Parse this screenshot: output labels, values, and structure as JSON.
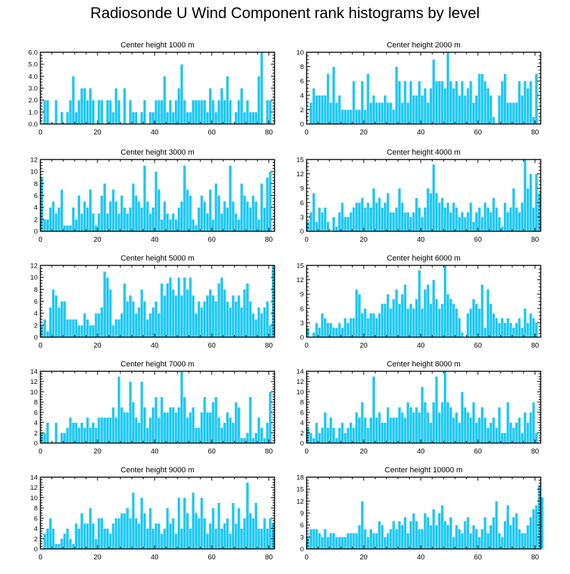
{
  "page_title": "Radiosonde U Wind Component rank histograms by level",
  "colors": {
    "bar": "#1EC8F5",
    "bar_edge": "#ffffff",
    "axis": "#000000"
  },
  "chart_data": [
    {
      "type": "bar",
      "title": "Center height 1000 m",
      "xlim": [
        0,
        82
      ],
      "ylim": [
        0,
        6
      ],
      "xticks": [
        0,
        20,
        40,
        60,
        80
      ],
      "yticks": [
        0,
        1,
        2,
        3,
        4,
        5,
        6
      ],
      "ytick_labels": [
        "0.0",
        "1.0",
        "2.0",
        "3.0",
        "4.0",
        "5.0",
        "6.0"
      ],
      "values": [
        0,
        2,
        2,
        0,
        0,
        2,
        0,
        1,
        0,
        1,
        2,
        4,
        1,
        2,
        3,
        3,
        2,
        3,
        2,
        0,
        2,
        2,
        0,
        2,
        2,
        1,
        3,
        2,
        0,
        3,
        0,
        2,
        1,
        1,
        0,
        1,
        2,
        0,
        1,
        1,
        2,
        2,
        2,
        4,
        1,
        2,
        1,
        2,
        3,
        5,
        2,
        1,
        1,
        2,
        2,
        2,
        2,
        2,
        1,
        3,
        2,
        1,
        2,
        3,
        2,
        4,
        2,
        0,
        1,
        2,
        3,
        1,
        2,
        1,
        1,
        1,
        4,
        6,
        0,
        2,
        2
      ]
    },
    {
      "type": "bar",
      "title": "Center height 2000 m",
      "xlim": [
        0,
        82
      ],
      "ylim": [
        0,
        10
      ],
      "xticks": [
        0,
        20,
        40,
        60,
        80
      ],
      "yticks": [
        0,
        2,
        4,
        6,
        8,
        10
      ],
      "ytick_labels": [
        "0",
        "2",
        "4",
        "6",
        "8",
        "10"
      ],
      "values": [
        0,
        3,
        5,
        4,
        4,
        4,
        4,
        7,
        3,
        8,
        3,
        4,
        2,
        2,
        2,
        2,
        6,
        2,
        2,
        6,
        2,
        7,
        3,
        4,
        3,
        3,
        3,
        4,
        3,
        3,
        2,
        8,
        6,
        3,
        6,
        3,
        6,
        4,
        4,
        6,
        4,
        5,
        3,
        5,
        9,
        6,
        6,
        6,
        5,
        10,
        6,
        5,
        6,
        4,
        6,
        4,
        5,
        6,
        3,
        4,
        7,
        7,
        6,
        5,
        4,
        1,
        0,
        4,
        6,
        7,
        3,
        3,
        3,
        3,
        6,
        4,
        6,
        5,
        6,
        1,
        7
      ]
    },
    {
      "type": "bar",
      "title": "Center height 3000 m",
      "xlim": [
        0,
        82
      ],
      "ylim": [
        0,
        12
      ],
      "xticks": [
        0,
        20,
        40,
        60,
        80
      ],
      "yticks": [
        0,
        2,
        4,
        6,
        8,
        10,
        12
      ],
      "ytick_labels": [
        "0",
        "2",
        "4",
        "6",
        "8",
        "10",
        "12"
      ],
      "values": [
        9,
        2,
        2,
        4,
        5,
        3,
        4,
        7,
        1,
        1,
        1,
        4,
        2,
        6,
        3,
        5,
        4,
        7,
        3,
        1,
        3,
        6,
        8,
        3,
        5,
        7,
        5,
        3,
        6,
        4,
        3,
        4,
        8,
        6,
        5,
        4,
        11,
        5,
        3,
        4,
        10,
        7,
        2,
        5,
        3,
        2,
        3,
        2,
        4,
        5,
        11,
        7,
        6,
        2,
        1,
        4,
        6,
        5,
        3,
        7,
        2,
        8,
        6,
        3,
        5,
        4,
        11,
        5,
        3,
        2,
        8,
        6,
        5,
        4,
        6,
        5,
        2,
        8,
        4,
        9,
        10
      ]
    },
    {
      "type": "bar",
      "title": "Center height 4000 m",
      "xlim": [
        0,
        82
      ],
      "ylim": [
        0,
        15
      ],
      "xticks": [
        0,
        20,
        40,
        60,
        80
      ],
      "yticks": [
        0,
        3,
        6,
        9,
        12,
        15
      ],
      "ytick_labels": [
        "0",
        "3",
        "6",
        "9",
        "12",
        "15"
      ],
      "values": [
        2,
        4,
        8,
        2,
        5,
        4,
        5,
        2,
        0,
        3,
        1,
        4,
        6,
        3,
        3,
        4,
        5,
        6,
        6,
        7,
        5,
        6,
        5,
        9,
        6,
        7,
        5,
        6,
        8,
        4,
        4,
        5,
        9,
        6,
        4,
        4,
        3,
        4,
        7,
        5,
        3,
        5,
        9,
        8,
        14,
        8,
        6,
        7,
        5,
        6,
        4,
        6,
        5,
        3,
        4,
        3,
        4,
        6,
        2,
        4,
        5,
        3,
        6,
        5,
        4,
        7,
        5,
        3,
        1,
        6,
        4,
        5,
        9,
        5,
        4,
        6,
        15,
        9,
        12,
        5,
        12,
        8
      ]
    },
    {
      "type": "bar",
      "title": "Center height 5000 m",
      "xlim": [
        0,
        82
      ],
      "ylim": [
        0,
        12
      ],
      "xticks": [
        0,
        20,
        40,
        60,
        80
      ],
      "yticks": [
        0,
        2,
        4,
        6,
        8,
        10,
        12
      ],
      "ytick_labels": [
        "0",
        "2",
        "4",
        "6",
        "8",
        "10",
        "12"
      ],
      "values": [
        2,
        3,
        1,
        5,
        8,
        7,
        5,
        6,
        6,
        3,
        3,
        3,
        3,
        2,
        2,
        4,
        3,
        2,
        2,
        4,
        4,
        5,
        11,
        10,
        8,
        2,
        3,
        3,
        4,
        9,
        6,
        7,
        6,
        4,
        5,
        8,
        6,
        3,
        4,
        5,
        6,
        4,
        9,
        7,
        9,
        10,
        8,
        7,
        10,
        7,
        10,
        8,
        10,
        7,
        4,
        6,
        5,
        6,
        7,
        8,
        7,
        6,
        9,
        10,
        8,
        6,
        5,
        7,
        6,
        7,
        5,
        8,
        9,
        6,
        4,
        3,
        5,
        4,
        5,
        6,
        2,
        12
      ]
    },
    {
      "type": "bar",
      "title": "Center height 6000 m",
      "xlim": [
        0,
        82
      ],
      "ylim": [
        0,
        15
      ],
      "xticks": [
        0,
        20,
        40,
        60,
        80
      ],
      "yticks": [
        0,
        3,
        6,
        9,
        12,
        15
      ],
      "ytick_labels": [
        "0",
        "3",
        "6",
        "9",
        "12",
        "15"
      ],
      "values": [
        2,
        0,
        1,
        3,
        2,
        5,
        4,
        3,
        3,
        2,
        2,
        3,
        2,
        4,
        3,
        4,
        4,
        10,
        9,
        5,
        6,
        4,
        5,
        5,
        4,
        5,
        7,
        7,
        9,
        6,
        8,
        10,
        7,
        9,
        11,
        6,
        7,
        6,
        8,
        14,
        6,
        10,
        11,
        7,
        12,
        8,
        6,
        7,
        15,
        9,
        8,
        7,
        6,
        4,
        1,
        0,
        5,
        6,
        8,
        7,
        6,
        11,
        2,
        10,
        7,
        5,
        4,
        3,
        4,
        3,
        4,
        3,
        2,
        3,
        4,
        2,
        6,
        3,
        5,
        4,
        3
      ]
    },
    {
      "type": "bar",
      "title": "Center height 7000 m",
      "xlim": [
        0,
        82
      ],
      "ylim": [
        0,
        14
      ],
      "xticks": [
        0,
        20,
        40,
        60,
        80
      ],
      "yticks": [
        0,
        2,
        4,
        6,
        8,
        10,
        12,
        14
      ],
      "ytick_labels": [
        "0",
        "2",
        "4",
        "6",
        "8",
        "10",
        "12",
        "14"
      ],
      "values": [
        2,
        2,
        4,
        0,
        0,
        4,
        0,
        2,
        2,
        3,
        5,
        4,
        4,
        3,
        4,
        3,
        5,
        3,
        4,
        3,
        5,
        5,
        5,
        5,
        5,
        7,
        5,
        13,
        7,
        6,
        6,
        12,
        8,
        5,
        4,
        12,
        7,
        3,
        5,
        7,
        9,
        5,
        9,
        6,
        6,
        7,
        7,
        6,
        7,
        14,
        9,
        5,
        6,
        7,
        3,
        3,
        6,
        9,
        6,
        6,
        8,
        9,
        5,
        3,
        4,
        6,
        5,
        4,
        8,
        7,
        1,
        1,
        2,
        9,
        1,
        2,
        5,
        3,
        1,
        4,
        10
      ]
    },
    {
      "type": "bar",
      "title": "Center height 8000 m",
      "xlim": [
        0,
        82
      ],
      "ylim": [
        0,
        14
      ],
      "xticks": [
        0,
        20,
        40,
        60,
        80
      ],
      "yticks": [
        0,
        2,
        4,
        6,
        8,
        10,
        12,
        14
      ],
      "ytick_labels": [
        "0",
        "2",
        "4",
        "6",
        "8",
        "10",
        "12",
        "14"
      ],
      "values": [
        3,
        2,
        1,
        4,
        2,
        3,
        6,
        3,
        5,
        3,
        1,
        3,
        4,
        2,
        3,
        4,
        3,
        6,
        5,
        8,
        5,
        3,
        5,
        13,
        5,
        6,
        4,
        4,
        7,
        5,
        5,
        5,
        7,
        6,
        5,
        8,
        7,
        6,
        7,
        6,
        11,
        8,
        6,
        4,
        8,
        13,
        6,
        8,
        14,
        8,
        7,
        5,
        6,
        4,
        10,
        7,
        6,
        5,
        8,
        4,
        5,
        7,
        5,
        3,
        4,
        5,
        3,
        7,
        2,
        2,
        8,
        4,
        3,
        4,
        5,
        2,
        6,
        4,
        6,
        8,
        2
      ]
    },
    {
      "type": "bar",
      "title": "Center height 9000 m",
      "xlim": [
        0,
        82
      ],
      "ylim": [
        0,
        14
      ],
      "xticks": [
        0,
        20,
        40,
        60,
        80
      ],
      "yticks": [
        0,
        2,
        4,
        6,
        8,
        10,
        12,
        14
      ],
      "ytick_labels": [
        "0",
        "2",
        "4",
        "6",
        "8",
        "10",
        "12",
        "14"
      ],
      "values": [
        0,
        3,
        4,
        6,
        4,
        1,
        1,
        2,
        3,
        4,
        2,
        1,
        5,
        4,
        7,
        5,
        5,
        8,
        5,
        2,
        6,
        6,
        4,
        4,
        3,
        5,
        6,
        6,
        7,
        7,
        8,
        6,
        11,
        6,
        5,
        10,
        7,
        4,
        8,
        4,
        5,
        5,
        3,
        4,
        8,
        5,
        6,
        3,
        10,
        4,
        10,
        7,
        4,
        11,
        7,
        6,
        10,
        6,
        3,
        5,
        8,
        4,
        9,
        4,
        5,
        6,
        3,
        9,
        5,
        8,
        4,
        6,
        13,
        7,
        6,
        9,
        4,
        4,
        6,
        4,
        6,
        5
      ]
    },
    {
      "type": "bar",
      "title": "Center height 10000 m",
      "xlim": [
        0,
        82
      ],
      "ylim": [
        0,
        18
      ],
      "xticks": [
        0,
        20,
        40,
        60,
        80
      ],
      "yticks": [
        0,
        3,
        6,
        9,
        12,
        15,
        18
      ],
      "ytick_labels": [
        "0",
        "3",
        "6",
        "9",
        "12",
        "15",
        "18"
      ],
      "values": [
        3,
        5,
        5,
        5,
        4,
        3,
        5,
        3,
        4,
        4,
        3,
        3,
        3,
        3,
        4,
        4,
        4,
        4,
        6,
        12,
        5,
        3,
        5,
        4,
        4,
        7,
        6,
        3,
        4,
        5,
        7,
        5,
        7,
        6,
        8,
        4,
        7,
        9,
        7,
        5,
        5,
        9,
        8,
        6,
        10,
        6,
        9,
        11,
        7,
        6,
        8,
        3,
        6,
        5,
        4,
        7,
        8,
        4,
        6,
        5,
        3,
        5,
        8,
        4,
        6,
        8,
        12,
        4,
        3,
        7,
        11,
        6,
        8,
        9,
        5,
        4,
        4,
        6,
        8,
        10,
        11,
        16,
        13
      ]
    }
  ]
}
